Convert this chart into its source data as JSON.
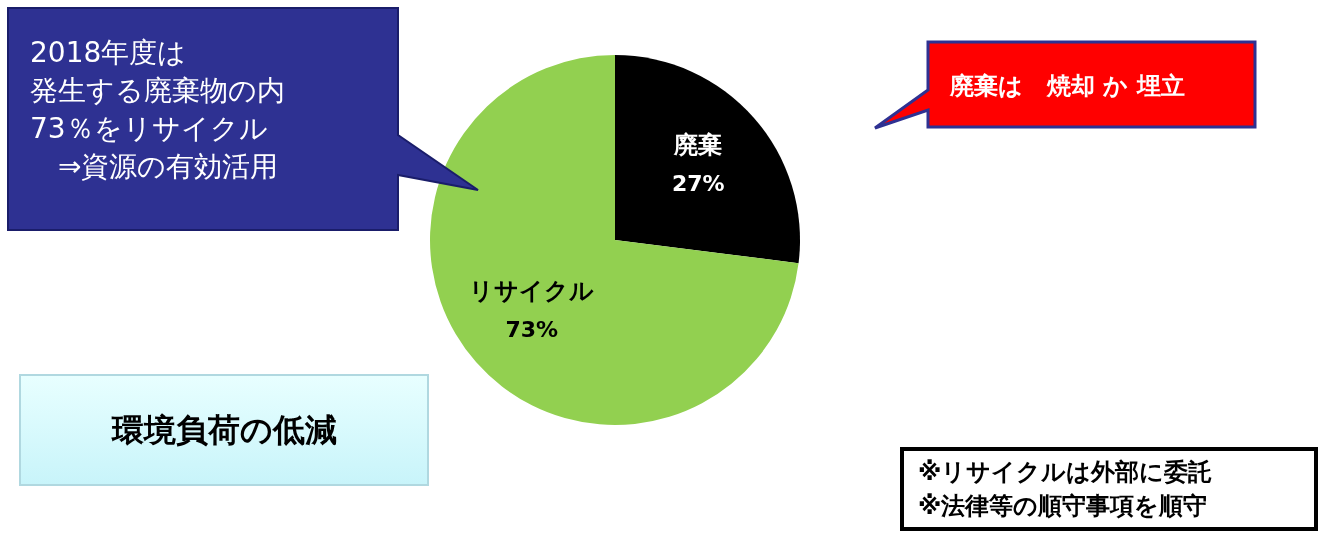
{
  "chart_data": {
    "type": "pie",
    "categories": [
      "廃棄",
      "リサイクル"
    ],
    "values": [
      27,
      73
    ],
    "colors": [
      "#000000",
      "#92d050"
    ],
    "value_labels": [
      "27%",
      "73%"
    ],
    "annotations": [
      "2018年度は",
      "発生する廃棄物の内",
      "73％をリサイクル",
      "　⇒資源の有効活用",
      "廃棄は　焼却 か 埋立",
      "環境負荷の低減",
      "※リサイクルは外部に委託",
      "※法律等の順守事項を順守"
    ]
  }
}
